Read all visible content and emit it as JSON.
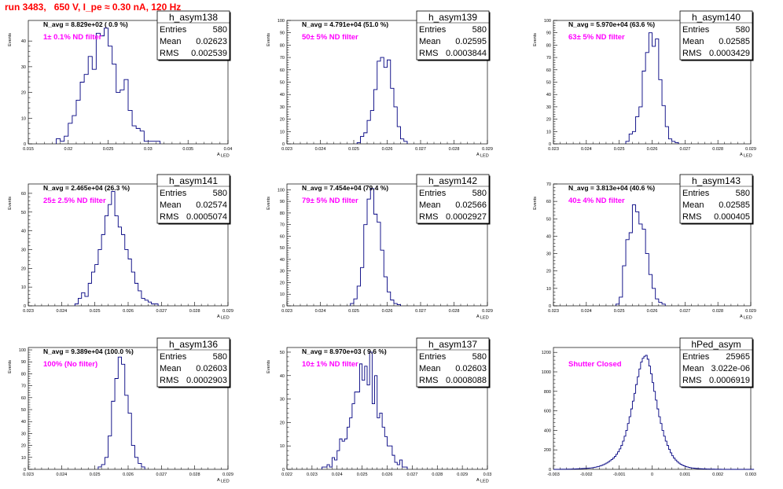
{
  "title": "run 3483,   650 V, I_pe ≈ 0.30 nA, 120 Hz",
  "chart_data": [
    {
      "type": "bar",
      "name": "h_asym138",
      "ylabel": "Events",
      "xlabel": "A",
      "xlabel_sub": "LED",
      "xlim": [
        0.015,
        0.04
      ],
      "ylim": [
        0,
        48
      ],
      "xticks": [
        "0.015",
        "0.02",
        "0.025",
        "0.03",
        "0.035",
        "0.04"
      ],
      "xtick_values": [
        0.015,
        0.02,
        0.025,
        0.03,
        0.035,
        0.04
      ],
      "yticks": [
        "0",
        "10",
        "20",
        "30",
        "40"
      ],
      "ytick_values": [
        0,
        10,
        20,
        30,
        40
      ],
      "n_avg": "N_avg = 8.829e+02 ( 0.9 %)",
      "filter": "1± 0.1% ND filter",
      "stats": {
        "Entries": "580",
        "Mean": "0.02623",
        "RMS": "0.002539"
      },
      "bins": {
        "start": 0.0185,
        "width": 0.0005,
        "counts": [
          2,
          1,
          3,
          8,
          11,
          17,
          24,
          27,
          34,
          29,
          43,
          42,
          45,
          38,
          31,
          20,
          21,
          25,
          13,
          7,
          6,
          5,
          1,
          1,
          1,
          1
        ]
      }
    },
    {
      "type": "bar",
      "name": "h_asym139",
      "ylabel": "Events",
      "xlabel": "A",
      "xlabel_sub": "LED",
      "xlim": [
        0.023,
        0.029
      ],
      "ylim": [
        0,
        100
      ],
      "xticks": [
        "0.023",
        "0.024",
        "0.025",
        "0.026",
        "0.027",
        "0.028",
        "0.029"
      ],
      "xtick_values": [
        0.023,
        0.024,
        0.025,
        0.026,
        0.027,
        0.028,
        0.029
      ],
      "yticks": [
        "0",
        "10",
        "20",
        "30",
        "40",
        "50",
        "60",
        "70",
        "80",
        "90",
        "100"
      ],
      "ytick_values": [
        0,
        10,
        20,
        30,
        40,
        50,
        60,
        70,
        80,
        90,
        100
      ],
      "n_avg": "N_avg = 4.791e+04 (51.0 %)",
      "filter": "50± 5% ND filter",
      "stats": {
        "Entries": "580",
        "Mean": "0.02595",
        "RMS": "0.0003844"
      },
      "bins": {
        "start": 0.0251,
        "width": 0.0001,
        "counts": [
          1,
          6,
          9,
          19,
          27,
          44,
          67,
          70,
          62,
          68,
          45,
          30,
          14,
          4,
          2
        ]
      }
    },
    {
      "type": "bar",
      "name": "h_asym140",
      "ylabel": "Events",
      "xlabel": "A",
      "xlabel_sub": "LED",
      "xlim": [
        0.023,
        0.029
      ],
      "ylim": [
        0,
        100
      ],
      "xticks": [
        "0.023",
        "0.024",
        "0.025",
        "0.026",
        "0.027",
        "0.028",
        "0.029"
      ],
      "xtick_values": [
        0.023,
        0.024,
        0.025,
        0.026,
        0.027,
        0.028,
        0.029
      ],
      "yticks": [
        "0",
        "10",
        "20",
        "30",
        "40",
        "50",
        "60",
        "70",
        "80",
        "90",
        "100"
      ],
      "ytick_values": [
        0,
        10,
        20,
        30,
        40,
        50,
        60,
        70,
        80,
        90,
        100
      ],
      "n_avg": "N_avg = 5.970e+04 (63.6 %)",
      "filter": "63± 5% ND filter",
      "stats": {
        "Entries": "580",
        "Mean": "0.02585",
        "RMS": "0.0003429"
      },
      "bins": {
        "start": 0.0252,
        "width": 0.0001,
        "counts": [
          2,
          8,
          10,
          22,
          30,
          59,
          74,
          90,
          79,
          85,
          52,
          31,
          14,
          4,
          2,
          1
        ]
      }
    },
    {
      "type": "bar",
      "name": "h_asym141",
      "ylabel": "Events",
      "xlabel": "A",
      "xlabel_sub": "LED",
      "xlim": [
        0.023,
        0.029
      ],
      "ylim": [
        0,
        65
      ],
      "xticks": [
        "0.023",
        "0.024",
        "0.025",
        "0.026",
        "0.027",
        "0.028",
        "0.029"
      ],
      "xtick_values": [
        0.023,
        0.024,
        0.025,
        0.026,
        0.027,
        0.028,
        0.029
      ],
      "yticks": [
        "0",
        "10",
        "20",
        "30",
        "40",
        "50",
        "60"
      ],
      "ytick_values": [
        0,
        10,
        20,
        30,
        40,
        50,
        60
      ],
      "n_avg": "N_avg = 2.465e+04 (26.3 %)",
      "filter": "25± 2.5% ND filter",
      "stats": {
        "Entries": "580",
        "Mean": "0.02574",
        "RMS": "0.0005074"
      },
      "bins": {
        "start": 0.0244,
        "width": 0.0001,
        "counts": [
          1,
          4,
          7,
          5,
          12,
          18,
          22,
          30,
          38,
          48,
          54,
          61,
          48,
          42,
          38,
          30,
          25,
          18,
          12,
          8,
          4,
          3,
          2,
          1,
          1
        ]
      }
    },
    {
      "type": "bar",
      "name": "h_asym142",
      "ylabel": "Events",
      "xlabel": "A",
      "xlabel_sub": "LED",
      "xlim": [
        0.023,
        0.029
      ],
      "ylim": [
        0,
        105
      ],
      "xticks": [
        "0.023",
        "0.024",
        "0.025",
        "0.026",
        "0.027",
        "0.028",
        "0.029"
      ],
      "xtick_values": [
        0.023,
        0.024,
        0.025,
        0.026,
        0.027,
        0.028,
        0.029
      ],
      "yticks": [
        "0",
        "10",
        "20",
        "30",
        "40",
        "50",
        "60",
        "70",
        "80",
        "90",
        "100"
      ],
      "ytick_values": [
        0,
        10,
        20,
        30,
        40,
        50,
        60,
        70,
        80,
        90,
        100
      ],
      "n_avg": "N_avg = 7.454e+04 (79.4 %)",
      "filter": "79± 5% ND filter",
      "stats": {
        "Entries": "580",
        "Mean": "0.02566",
        "RMS": "0.0002927"
      },
      "bins": {
        "start": 0.0249,
        "width": 0.0001,
        "counts": [
          2,
          6,
          17,
          33,
          70,
          92,
          101,
          79,
          72,
          48,
          25,
          12,
          5,
          2,
          1
        ]
      }
    },
    {
      "type": "bar",
      "name": "h_asym143",
      "ylabel": "Events",
      "xlabel": "A",
      "xlabel_sub": "LED",
      "xlim": [
        0.023,
        0.029
      ],
      "ylim": [
        0,
        70
      ],
      "xticks": [
        "0.023",
        "0.024",
        "0.025",
        "0.026",
        "0.027",
        "0.028",
        "0.029"
      ],
      "xtick_values": [
        0.023,
        0.024,
        0.025,
        0.026,
        0.027,
        0.028,
        0.029
      ],
      "yticks": [
        "0",
        "10",
        "20",
        "30",
        "40",
        "50",
        "60",
        "70"
      ],
      "ytick_values": [
        0,
        10,
        20,
        30,
        40,
        50,
        60,
        70
      ],
      "n_avg": "N_avg = 3.813e+04 (40.6 %)",
      "filter": "40± 4% ND filter",
      "stats": {
        "Entries": "580",
        "Mean": "0.02585",
        "RMS": "0.000405"
      },
      "bins": {
        "start": 0.0249,
        "width": 0.0001,
        "counts": [
          1,
          5,
          23,
          38,
          42,
          58,
          54,
          47,
          44,
          30,
          18,
          10,
          4,
          2,
          1
        ]
      }
    },
    {
      "type": "bar",
      "name": "h_asym136",
      "ylabel": "Events",
      "xlabel": "A",
      "xlabel_sub": "LED",
      "xlim": [
        0.023,
        0.029
      ],
      "ylim": [
        0,
        102
      ],
      "xticks": [
        "0.023",
        "0.024",
        "0.025",
        "0.026",
        "0.027",
        "0.028",
        "0.029"
      ],
      "xtick_values": [
        0.023,
        0.024,
        0.025,
        0.026,
        0.027,
        0.028,
        0.029
      ],
      "yticks": [
        "0",
        "10",
        "20",
        "30",
        "40",
        "50",
        "60",
        "70",
        "80",
        "90",
        "100"
      ],
      "ytick_values": [
        0,
        10,
        20,
        30,
        40,
        50,
        60,
        70,
        80,
        90,
        100
      ],
      "n_avg": "N_avg = 9.389e+04 (100.0 %)",
      "filter": "100% (No filter)",
      "stats": {
        "Entries": "580",
        "Mean": "0.02603",
        "RMS": "0.0002903"
      },
      "bins": {
        "start": 0.0251,
        "width": 0.0001,
        "counts": [
          2,
          4,
          10,
          28,
          57,
          76,
          94,
          88,
          62,
          47,
          20,
          10,
          5,
          2
        ]
      }
    },
    {
      "type": "bar",
      "name": "h_asym137",
      "ylabel": "Events",
      "xlabel": "A",
      "xlabel_sub": "LED",
      "xlim": [
        0.022,
        0.03
      ],
      "ylim": [
        0,
        52
      ],
      "xticks": [
        "0.022",
        "0.023",
        "0.024",
        "0.025",
        "0.026",
        "0.027",
        "0.028",
        "0.029",
        "0.03"
      ],
      "xtick_values": [
        0.022,
        0.023,
        0.024,
        0.025,
        0.026,
        0.027,
        0.028,
        0.029,
        0.03
      ],
      "yticks": [
        "0",
        "10",
        "20",
        "30",
        "40",
        "50"
      ],
      "ytick_values": [
        0,
        10,
        20,
        30,
        40,
        50
      ],
      "n_avg": "N_avg = 8.970e+03 ( 9.6 %)",
      "filter": "10± 1% ND filter",
      "stats": {
        "Entries": "580",
        "Mean": "0.02603",
        "RMS": "0.0008088"
      },
      "bins": {
        "start": 0.0234,
        "width": 0.0001,
        "counts": [
          1,
          1,
          2,
          1,
          5,
          4,
          8,
          13,
          12,
          13,
          18,
          22,
          28,
          33,
          33,
          45,
          38,
          44,
          36,
          50,
          28,
          40,
          22,
          24,
          18,
          14,
          10,
          10,
          6,
          3,
          2,
          4,
          1,
          1
        ]
      }
    },
    {
      "type": "bar",
      "name": "hPed_asym",
      "ylabel": "",
      "xlabel": "",
      "xlabel_sub": "",
      "xlim": [
        -0.003,
        0.003
      ],
      "ylim": [
        0,
        1250
      ],
      "xticks": [
        "-0.003",
        "-0.002",
        "-0.001",
        "0",
        "0.001",
        "0.002",
        "0.003"
      ],
      "xtick_values": [
        -0.003,
        -0.002,
        -0.001,
        0,
        0.001,
        0.002,
        0.003
      ],
      "yticks": [
        "0",
        "200",
        "400",
        "600",
        "800",
        "1000",
        "1200"
      ],
      "ytick_values": [
        0,
        200,
        400,
        600,
        800,
        1000,
        1200
      ],
      "n_avg": "",
      "filter": "Shutter Closed",
      "stats": {
        "Entries": "25965",
        "Mean": "3.022e-06",
        "RMS": "0.0006919"
      },
      "bins": {
        "start": -0.003,
        "width": 5e-05,
        "counts": [
          0,
          0,
          0,
          0,
          1,
          1,
          1,
          1,
          2,
          2,
          2,
          3,
          3,
          4,
          5,
          6,
          6,
          8,
          9,
          10,
          11,
          12,
          14,
          16,
          19,
          22,
          26,
          30,
          35,
          41,
          48,
          56,
          65,
          75,
          88,
          100,
          115,
          132,
          155,
          180,
          210,
          245,
          290,
          340,
          400,
          470,
          540,
          620,
          700,
          780,
          870,
          950,
          1030,
          1100,
          1140,
          1160,
          1170,
          1130,
          1060,
          980,
          890,
          800,
          710,
          620,
          540,
          470,
          400,
          340,
          290,
          245,
          205,
          170,
          140,
          115,
          95,
          78,
          64,
          52,
          43,
          36,
          30,
          25,
          21,
          17,
          14,
          12,
          10,
          8,
          7,
          6,
          5,
          4,
          4,
          3,
          3,
          2,
          2,
          2,
          1,
          1,
          1,
          1,
          0,
          0,
          0,
          0,
          0,
          0,
          0,
          0,
          0,
          0,
          0,
          0,
          0,
          0,
          0,
          0,
          0,
          0,
          0,
          0
        ]
      }
    }
  ]
}
